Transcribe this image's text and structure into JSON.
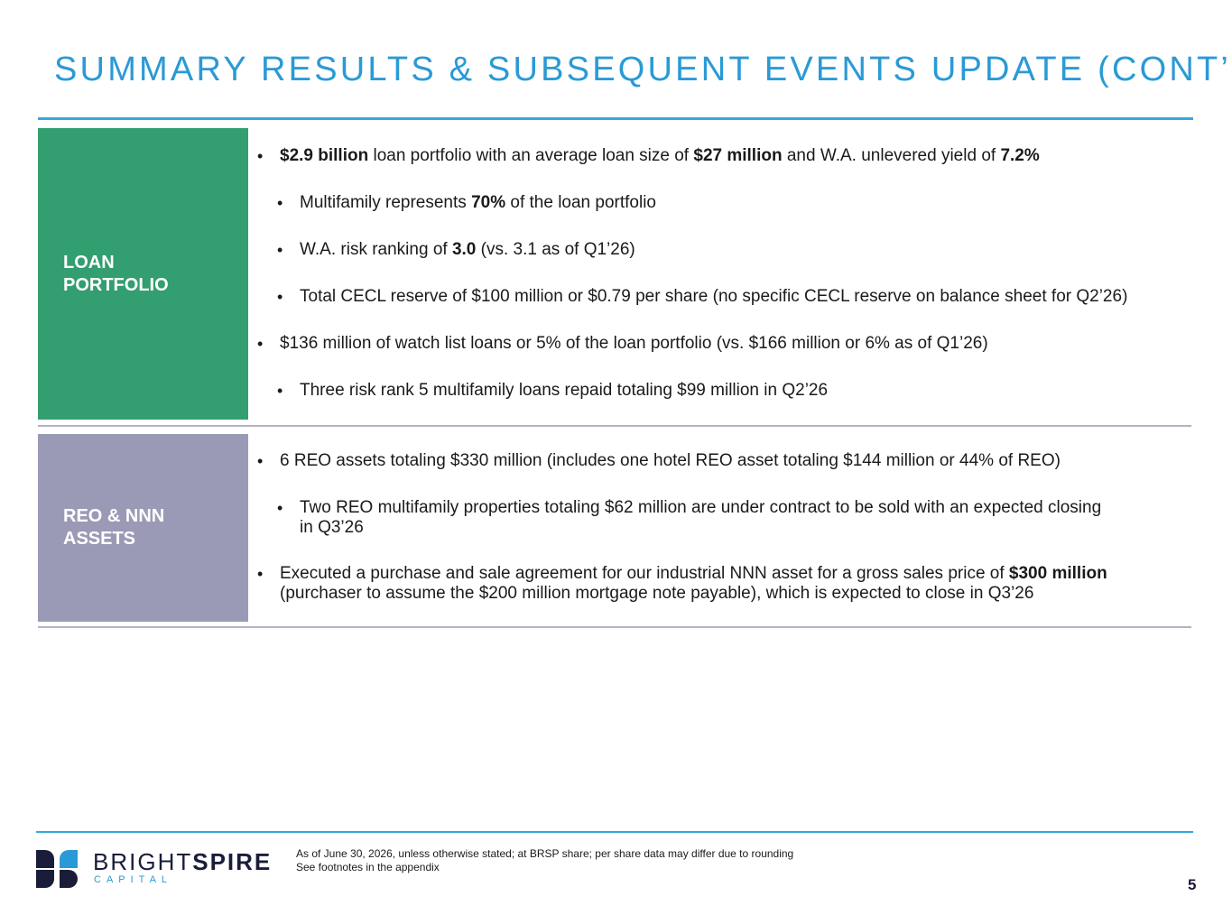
{
  "title": "SUMMARY RESULTS & SUBSEQUENT EVENTS UPDATE (CONT’D)",
  "loan_portfolio": {
    "label_line1": "LOAN",
    "label_line2": "PORTFOLIO",
    "bullets": {
      "b1": {
        "v1": "$2.9 billion",
        "t1": " loan portfolio with an average loan size of ",
        "v2": "$27 million",
        "t2": " and W.A. unlevered yield of ",
        "v3": "7.2%"
      },
      "b1a": {
        "t1": "Multifamily represents ",
        "v1": "70%",
        "t2": " of the loan portfolio"
      },
      "b1b": {
        "t1": "W.A. risk ranking of ",
        "v1": "3.0",
        "t2": " (vs. 3.1 as of Q1’26)"
      },
      "b1c": "Total CECL reserve of $100 million or $0.79 per share (no specific CECL reserve on balance sheet for Q2’26)",
      "b2": "$136 million of watch list loans or 5% of the loan portfolio (vs. $166 million or 6% as of Q1’26)",
      "b2a": "Three risk rank 5 multifamily loans repaid totaling $99 million in Q2’26"
    }
  },
  "reo": {
    "label_line1": "REO & NNN",
    "label_line2": "ASSETS",
    "bullets": {
      "b1": "6 REO assets totaling $330 million (includes one hotel REO asset totaling $144 million or 44% of REO)",
      "b1a_line1": "Two REO multifamily properties totaling $62 million are under contract to be sold with an expected closing",
      "b1a_line2": "in Q3’26",
      "b2_line1_text": "Executed a purchase and sale agreement for our industrial NNN asset for a gross sales price of ",
      "b2_line1_value": "$300 million",
      "b2_line2": "(purchaser to assume the $200 million mortgage note payable), which is expected to close in Q3’26"
    }
  },
  "logo": {
    "word_light": "BRIGHT",
    "word_bold": "SPIRE",
    "sub": "CAPITAL"
  },
  "footnote": {
    "line1": "As of June 30, 2026, unless otherwise stated; at BRSP share; per share data may differ due to rounding",
    "line2": "See footnotes in the appendix"
  },
  "page_number": "5",
  "colors": {
    "accent_blue": "#2a9ad6",
    "loan_green": "#339e6f",
    "reo_lavender": "#9b9ab6",
    "navy": "#1a1d3a"
  }
}
